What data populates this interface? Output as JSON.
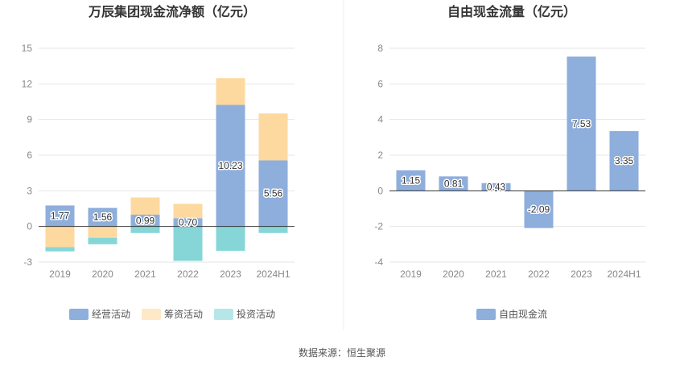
{
  "colors": {
    "operating": "#8eaedc",
    "financing": "#fdd9a0",
    "investing": "#86d6d8",
    "free_cash_flow": "#8eaedc",
    "grid": "#e6e6e6",
    "axis": "#333333"
  },
  "source_text": "数据来源：恒生聚源",
  "chart_data": [
    {
      "type": "bar",
      "stacked": true,
      "title": "万辰集团现金流净额（亿元）",
      "categories": [
        "2019",
        "2020",
        "2021",
        "2022",
        "2023",
        "2024H1"
      ],
      "ylim": [
        -3,
        15
      ],
      "yticks": [
        "15",
        "12",
        "9",
        "6",
        "3",
        "0",
        "-3"
      ],
      "ytick_values": [
        15,
        12,
        9,
        6,
        3,
        0,
        -3
      ],
      "grid": true,
      "legend_position": "bottom",
      "series": [
        {
          "name": "经营活动",
          "color_key": "operating",
          "values": [
            1.77,
            1.56,
            0.99,
            0.7,
            10.23,
            5.56
          ],
          "labels": [
            "1.77",
            "1.56",
            "0.99",
            "0.70",
            "10.23",
            "5.56"
          ]
        },
        {
          "name": "筹资活动",
          "color_key": "financing",
          "values": [
            -1.75,
            -0.95,
            1.45,
            1.2,
            2.25,
            3.95
          ]
        },
        {
          "name": "投资活动",
          "color_key": "investing",
          "values": [
            -0.35,
            -0.55,
            -0.55,
            -2.9,
            -2.05,
            -0.55
          ]
        }
      ]
    },
    {
      "type": "bar",
      "title": "自由现金流量（亿元）",
      "categories": [
        "2019",
        "2020",
        "2021",
        "2022",
        "2023",
        "2024H1"
      ],
      "ylim": [
        -4,
        8
      ],
      "yticks": [
        "8",
        "6",
        "4",
        "2",
        "0",
        "-2",
        "-4"
      ],
      "ytick_values": [
        8,
        6,
        4,
        2,
        0,
        -2,
        -4
      ],
      "grid": true,
      "legend_position": "bottom",
      "series": [
        {
          "name": "自由现金流",
          "color_key": "free_cash_flow",
          "values": [
            1.15,
            0.81,
            0.43,
            -2.09,
            7.53,
            3.35
          ],
          "labels": [
            "1.15",
            "0.81",
            "0.43",
            "-2.09",
            "7.53",
            "3.35"
          ]
        }
      ]
    }
  ]
}
